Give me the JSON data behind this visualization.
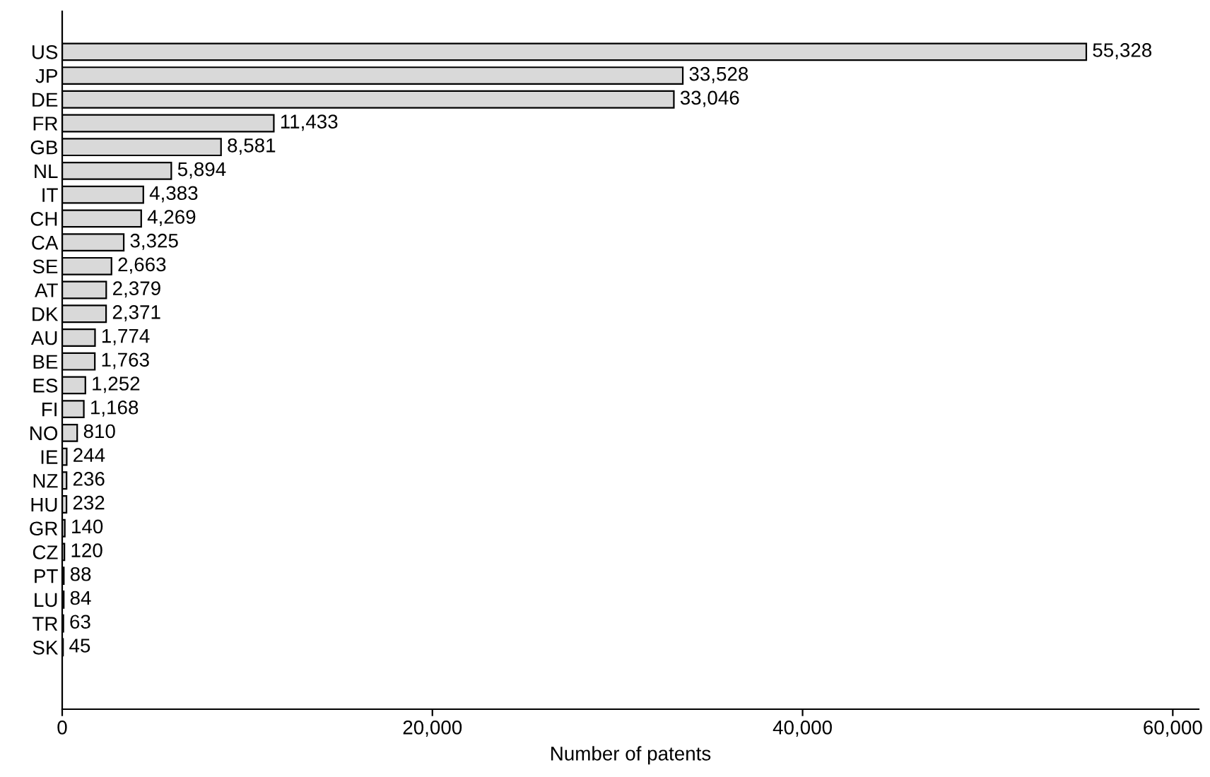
{
  "chart_data": {
    "type": "bar",
    "orientation": "horizontal",
    "xlabel": "Number of patents",
    "categories": [
      "US",
      "JP",
      "DE",
      "FR",
      "GB",
      "NL",
      "IT",
      "CH",
      "CA",
      "SE",
      "AT",
      "DK",
      "AU",
      "BE",
      "ES",
      "FI",
      "NO",
      "IE",
      "NZ",
      "HU",
      "GR",
      "CZ",
      "PT",
      "LU",
      "TR",
      "SK"
    ],
    "values": [
      55328,
      33528,
      33046,
      11433,
      8581,
      5894,
      4383,
      4269,
      3325,
      2663,
      2379,
      2371,
      1774,
      1763,
      1252,
      1168,
      810,
      244,
      236,
      232,
      140,
      120,
      88,
      84,
      63,
      45
    ],
    "color": "#d9d9d9",
    "xlim": [
      0,
      61400
    ],
    "xticks": [
      0,
      {
        "value": 20000,
        "label": "20,000"
      },
      {
        "value": 40000,
        "label": "40,000"
      },
      {
        "value": 60000,
        "label": "60,000"
      }
    ],
    "value_labels": [
      "55,328",
      "33,528",
      "33,046",
      "11,433",
      "8,581",
      "5,894",
      "4,383",
      "4,269",
      "3,325",
      "2,663",
      "2,379",
      "2,371",
      "1,774",
      "1,763",
      "1,252",
      "1,168",
      "810",
      "244",
      "236",
      "232",
      "140",
      "120",
      "88",
      "84",
      "63",
      "45"
    ],
    "grid": false
  }
}
